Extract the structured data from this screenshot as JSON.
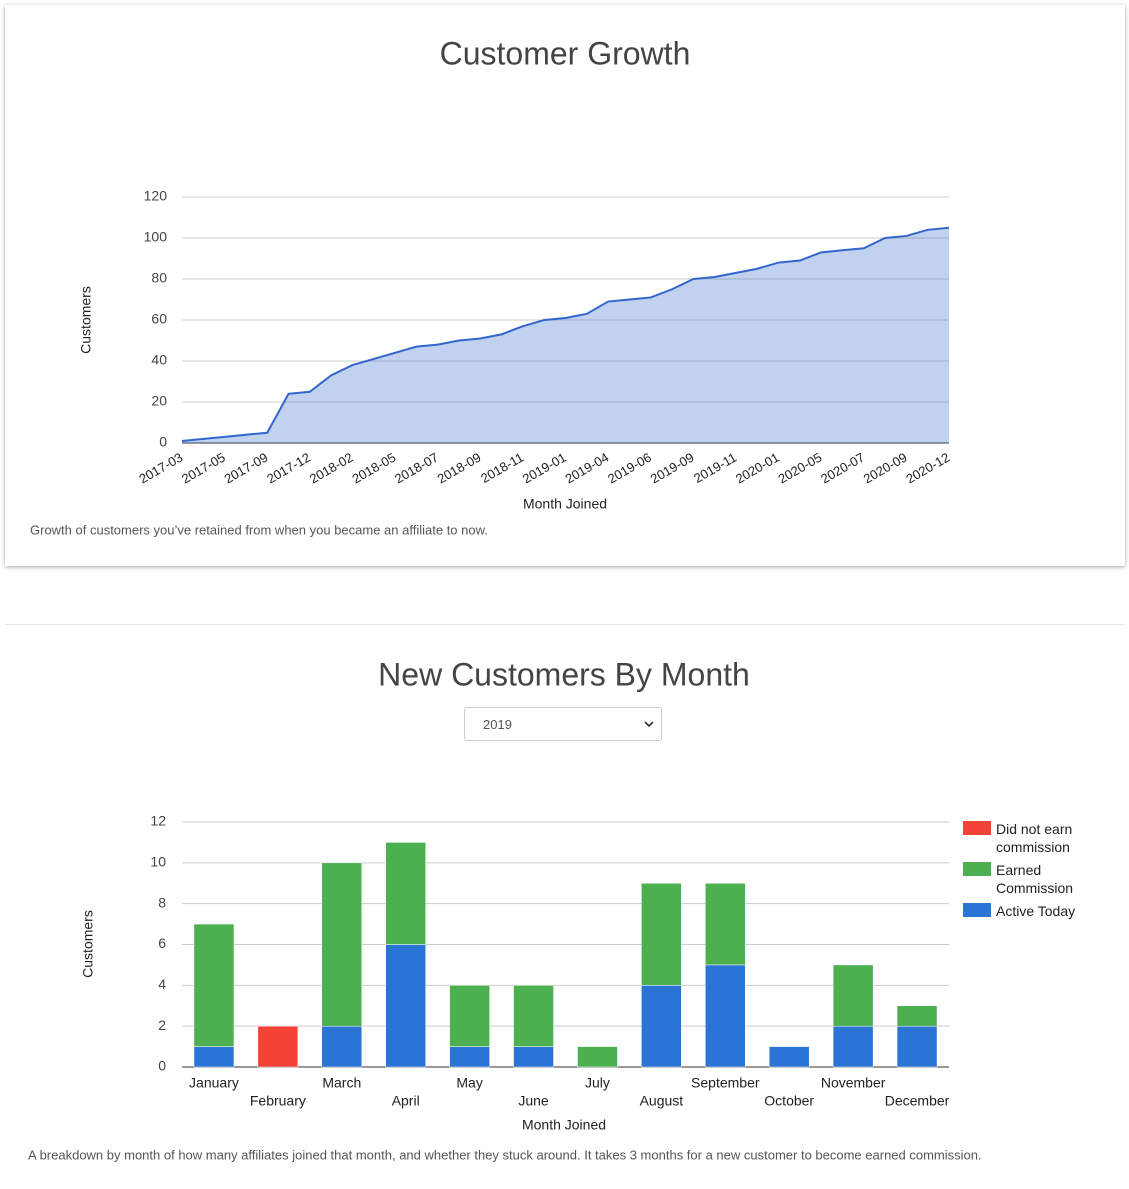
{
  "chart_data": [
    {
      "type": "area",
      "title": "Customer Growth",
      "x_label": "Month Joined",
      "y_label": "Customers",
      "categories": [
        "2017-03",
        null,
        "2017-05",
        null,
        "2017-09",
        null,
        "2017-12",
        null,
        "2018-02",
        null,
        "2018-05",
        null,
        "2018-07",
        null,
        "2018-09",
        null,
        "2018-11",
        null,
        "2019-01",
        null,
        "2019-04",
        null,
        "2019-06",
        null,
        "2019-09",
        null,
        "2019-11",
        null,
        "2020-01",
        null,
        "2020-05",
        null,
        "2020-07",
        null,
        "2020-09",
        null,
        "2020-12"
      ],
      "values": [
        1,
        2,
        3,
        4,
        5,
        24,
        25,
        33,
        38,
        41,
        44,
        47,
        48,
        50,
        51,
        53,
        57,
        60,
        61,
        63,
        69,
        70,
        71,
        75,
        80,
        81,
        83,
        85,
        88,
        89,
        93,
        94,
        95,
        100,
        101,
        104,
        105
      ],
      "color": "#3366cc",
      "ylim": [
        0,
        120
      ],
      "yticks": [
        0,
        20,
        40,
        60,
        80,
        100,
        120
      ],
      "grid": true,
      "caption": "Growth of customers you’ve retained from when you became an affiliate to now."
    },
    {
      "type": "stacked_bar",
      "title": "New Customers By Month",
      "x_label": "Month Joined",
      "y_label": "Customers",
      "categories": [
        "January",
        "February",
        "March",
        "April",
        "May",
        "June",
        "July",
        "August",
        "September",
        "October",
        "November",
        "December"
      ],
      "series": [
        {
          "name": "Did not earn commission",
          "color": "#f44336",
          "values": [
            0,
            2,
            0,
            0,
            0,
            0,
            0,
            0,
            0,
            0,
            0,
            0
          ]
        },
        {
          "name": "Earned Commission",
          "color": "#4caf50",
          "values": [
            6,
            0,
            8,
            5,
            3,
            3,
            1,
            5,
            4,
            0,
            3,
            1
          ]
        },
        {
          "name": "Active Today",
          "color": "#2a74d5",
          "values": [
            1,
            0,
            2,
            6,
            1,
            1,
            0,
            4,
            5,
            1,
            2,
            2
          ]
        }
      ],
      "ylim": [
        0,
        12
      ],
      "yticks": [
        0,
        2,
        4,
        6,
        8,
        10,
        12
      ],
      "grid": true,
      "legend": "right",
      "caption": "A breakdown by month of how many affiliates joined that month, and whether they stuck around. It takes 3 months for a new customer to become earned commission."
    }
  ],
  "year_select": {
    "value": "2019"
  }
}
